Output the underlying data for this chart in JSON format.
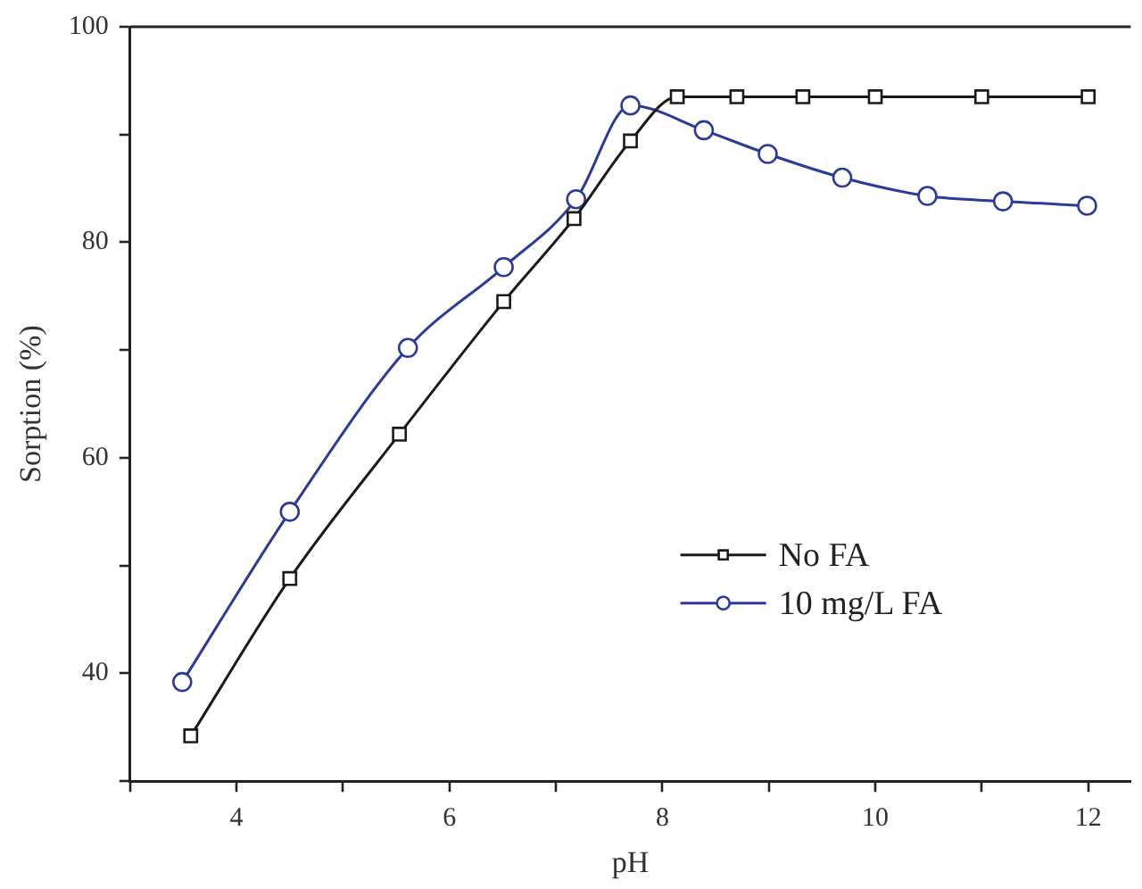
{
  "chart_data": {
    "type": "line",
    "xlabel": "pH",
    "ylabel": "Sorption (%)",
    "xlim": [
      3,
      12.4
    ],
    "xticks": [
      4,
      6,
      8,
      10,
      12
    ],
    "ylim": [
      30,
      100
    ],
    "yticks": [
      40,
      60,
      80,
      100
    ],
    "grid": false,
    "legend": "right",
    "line_style": "solid",
    "series": [
      {
        "name": "No FA",
        "color": "#1a1a1a",
        "marker": "square",
        "x": [
          3.57,
          4.5,
          5.53,
          6.51,
          7.17,
          7.7,
          8.14,
          8.7,
          9.32,
          10.0,
          11.0,
          12.0
        ],
        "values": [
          34.2,
          48.8,
          62.2,
          74.5,
          82.2,
          89.4,
          93.5,
          93.5,
          93.5,
          93.5,
          93.5,
          93.5
        ]
      },
      {
        "name": "10 mg/L FA",
        "color": "#2b3a9b",
        "marker": "circle",
        "x": [
          3.49,
          4.5,
          5.61,
          6.51,
          7.19,
          7.7,
          8.39,
          8.99,
          9.69,
          10.49,
          11.2,
          11.99
        ],
        "values": [
          39.2,
          55.0,
          70.2,
          77.7,
          84.0,
          92.7,
          90.4,
          88.2,
          86.0,
          84.3,
          83.8,
          83.4
        ]
      }
    ]
  }
}
